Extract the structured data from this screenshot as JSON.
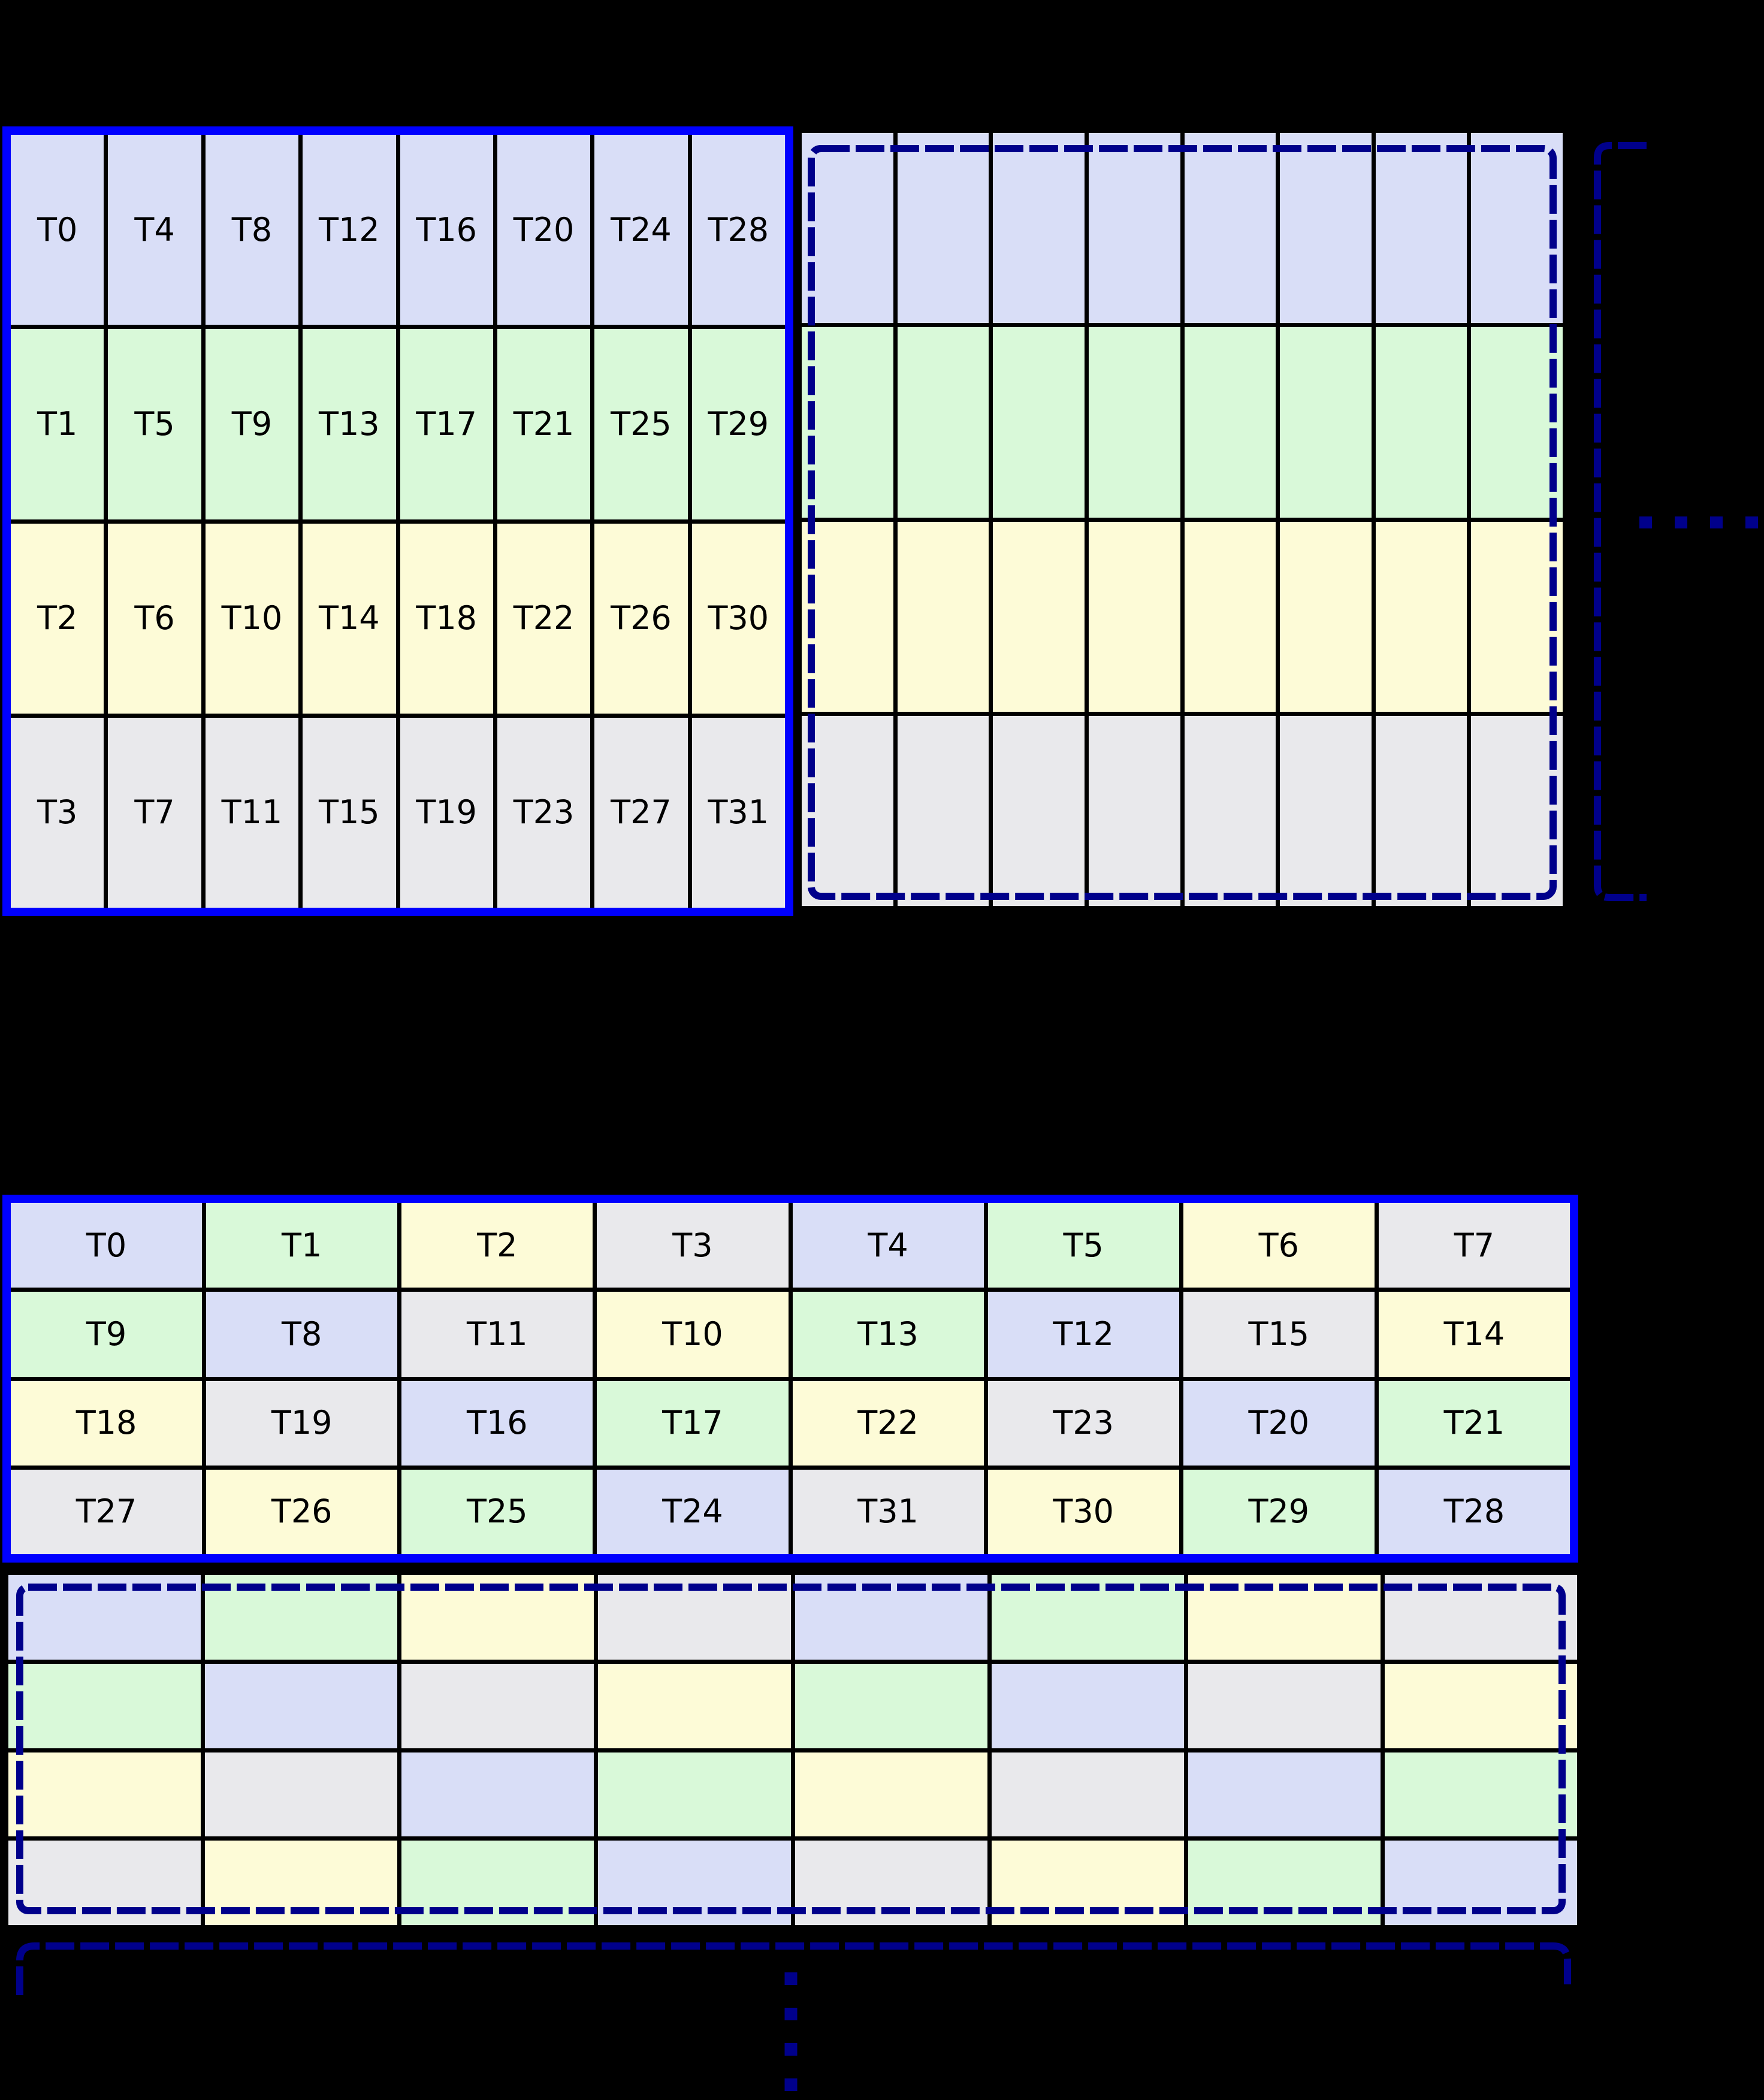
{
  "colors": {
    "blue": "#d9def7",
    "green": "#d9f9d9",
    "yellow": "#fdfbd7",
    "gray": "#e9e9ec",
    "outline": "#0000ff",
    "dashed": "#00008b",
    "gridline": "#000000",
    "background": "#000000"
  },
  "tiles": {
    "top_labeled": {
      "rows": 4,
      "cols": 8,
      "labels": [
        [
          "T0",
          "T4",
          "T8",
          "T12",
          "T16",
          "T20",
          "T24",
          "T28"
        ],
        [
          "T1",
          "T5",
          "T9",
          "T13",
          "T17",
          "T21",
          "T25",
          "T29"
        ],
        [
          "T2",
          "T6",
          "T10",
          "T14",
          "T18",
          "T22",
          "T26",
          "T30"
        ],
        [
          "T3",
          "T7",
          "T11",
          "T15",
          "T19",
          "T23",
          "T27",
          "T31"
        ]
      ],
      "cell_colors": [
        [
          "blue",
          "blue",
          "blue",
          "blue",
          "blue",
          "blue",
          "blue",
          "blue"
        ],
        [
          "green",
          "green",
          "green",
          "green",
          "green",
          "green",
          "green",
          "green"
        ],
        [
          "yellow",
          "yellow",
          "yellow",
          "yellow",
          "yellow",
          "yellow",
          "yellow",
          "yellow"
        ],
        [
          "gray",
          "gray",
          "gray",
          "gray",
          "gray",
          "gray",
          "gray",
          "gray"
        ]
      ]
    },
    "top_unlabeled": {
      "rows": 4,
      "cols": 8,
      "labels": null,
      "cell_colors": [
        [
          "blue",
          "blue",
          "blue",
          "blue",
          "blue",
          "blue",
          "blue",
          "blue"
        ],
        [
          "green",
          "green",
          "green",
          "green",
          "green",
          "green",
          "green",
          "green"
        ],
        [
          "yellow",
          "yellow",
          "yellow",
          "yellow",
          "yellow",
          "yellow",
          "yellow",
          "yellow"
        ],
        [
          "gray",
          "gray",
          "gray",
          "gray",
          "gray",
          "gray",
          "gray",
          "gray"
        ]
      ]
    },
    "bottom_labeled": {
      "rows": 4,
      "cols": 8,
      "labels": [
        [
          "T0",
          "T1",
          "T2",
          "T3",
          "T4",
          "T5",
          "T6",
          "T7"
        ],
        [
          "T9",
          "T8",
          "T11",
          "T10",
          "T13",
          "T12",
          "T15",
          "T14"
        ],
        [
          "T18",
          "T19",
          "T16",
          "T17",
          "T22",
          "T23",
          "T20",
          "T21"
        ],
        [
          "T27",
          "T26",
          "T25",
          "T24",
          "T31",
          "T30",
          "T29",
          "T28"
        ]
      ],
      "cell_colors": [
        [
          "blue",
          "green",
          "yellow",
          "gray",
          "blue",
          "green",
          "yellow",
          "gray"
        ],
        [
          "green",
          "blue",
          "gray",
          "yellow",
          "green",
          "blue",
          "gray",
          "yellow"
        ],
        [
          "yellow",
          "gray",
          "blue",
          "green",
          "yellow",
          "gray",
          "blue",
          "green"
        ],
        [
          "gray",
          "yellow",
          "green",
          "blue",
          "gray",
          "yellow",
          "green",
          "blue"
        ]
      ]
    },
    "bottom_unlabeled": {
      "rows": 4,
      "cols": 8,
      "labels": null,
      "cell_colors": [
        [
          "blue",
          "green",
          "yellow",
          "gray",
          "blue",
          "green",
          "yellow",
          "gray"
        ],
        [
          "green",
          "blue",
          "gray",
          "yellow",
          "green",
          "blue",
          "gray",
          "yellow"
        ],
        [
          "yellow",
          "gray",
          "blue",
          "green",
          "yellow",
          "gray",
          "blue",
          "green"
        ],
        [
          "gray",
          "yellow",
          "green",
          "blue",
          "gray",
          "yellow",
          "green",
          "blue"
        ]
      ]
    }
  },
  "annotations": {
    "horizontal_ellipsis_dashes": 4,
    "vertical_ellipsis_dashes": 4
  }
}
